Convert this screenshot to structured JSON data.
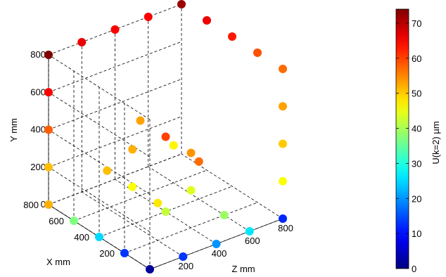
{
  "chart_data": {
    "type": "scatter3d",
    "axes": {
      "x": {
        "label": "X mm",
        "ticks": [
          "200",
          "400",
          "600",
          "800"
        ],
        "range": [
          0,
          800
        ]
      },
      "y": {
        "label": "Y mm",
        "ticks": [
          "0",
          "200",
          "400",
          "600",
          "800"
        ],
        "range": [
          0,
          800
        ]
      },
      "z": {
        "label": "Z mm",
        "ticks": [
          "200",
          "400",
          "600",
          "800"
        ],
        "range": [
          0,
          800
        ]
      }
    },
    "grid": "dashed",
    "colorbar": {
      "label": "U(k=2) µm",
      "ticks": [
        "0",
        "10",
        "20",
        "30",
        "40",
        "50",
        "60",
        "70"
      ],
      "range": [
        0,
        74
      ],
      "colormap": "jet"
    },
    "points": [
      {
        "x": 0,
        "y": 0,
        "z": 0,
        "u": 2
      },
      {
        "x": 200,
        "y": 0,
        "z": 0,
        "u": 13
      },
      {
        "x": 400,
        "y": 0,
        "z": 0,
        "u": 25
      },
      {
        "x": 600,
        "y": 0,
        "z": 0,
        "u": 37
      },
      {
        "x": 800,
        "y": 0,
        "z": 0,
        "u": 52
      },
      {
        "x": 0,
        "y": 0,
        "z": 200,
        "u": 13
      },
      {
        "x": 0,
        "y": 0,
        "z": 400,
        "u": 20
      },
      {
        "x": 0,
        "y": 0,
        "z": 600,
        "u": 26
      },
      {
        "x": 0,
        "y": 0,
        "z": 800,
        "u": 12
      },
      {
        "x": 800,
        "y": 200,
        "z": 0,
        "u": 51
      },
      {
        "x": 800,
        "y": 400,
        "z": 0,
        "u": 58
      },
      {
        "x": 800,
        "y": 600,
        "z": 0,
        "u": 65
      },
      {
        "x": 800,
        "y": 800,
        "z": 0,
        "u": 74
      },
      {
        "x": 800,
        "y": 800,
        "z": 200,
        "u": 66
      },
      {
        "x": 800,
        "y": 800,
        "z": 400,
        "u": 65
      },
      {
        "x": 800,
        "y": 800,
        "z": 600,
        "u": 65
      },
      {
        "x": 800,
        "y": 800,
        "z": 800,
        "u": 72
      },
      {
        "x": 600,
        "y": 800,
        "z": 800,
        "u": 66
      },
      {
        "x": 400,
        "y": 800,
        "z": 800,
        "u": 63
      },
      {
        "x": 200,
        "y": 800,
        "z": 800,
        "u": 59
      },
      {
        "x": 0,
        "y": 800,
        "z": 800,
        "u": 57
      },
      {
        "x": 0,
        "y": 600,
        "z": 800,
        "u": 53
      },
      {
        "x": 0,
        "y": 400,
        "z": 800,
        "u": 50
      },
      {
        "x": 0,
        "y": 200,
        "z": 800,
        "u": 46
      },
      {
        "x": 400,
        "y": 400,
        "z": 400,
        "u": 60
      },
      {
        "x": 200,
        "y": 400,
        "z": 400,
        "u": 54
      },
      {
        "x": 400,
        "y": 400,
        "z": 200,
        "u": 52
      },
      {
        "x": 600,
        "y": 400,
        "z": 400,
        "u": 53
      },
      {
        "x": 600,
        "y": 200,
        "z": 200,
        "u": 51
      },
      {
        "x": 400,
        "y": 200,
        "z": 600,
        "u": 57
      },
      {
        "x": 200,
        "y": 200,
        "z": 200,
        "u": 48
      },
      {
        "x": 600,
        "y": 200,
        "z": 600,
        "u": 47
      },
      {
        "x": 400,
        "y": 200,
        "z": 200,
        "u": 46
      },
      {
        "x": 200,
        "y": 200,
        "z": 400,
        "u": 44
      },
      {
        "x": 400,
        "y": 0,
        "z": 400,
        "u": 42
      },
      {
        "x": 200,
        "y": 0,
        "z": 600,
        "u": 39
      }
    ]
  }
}
